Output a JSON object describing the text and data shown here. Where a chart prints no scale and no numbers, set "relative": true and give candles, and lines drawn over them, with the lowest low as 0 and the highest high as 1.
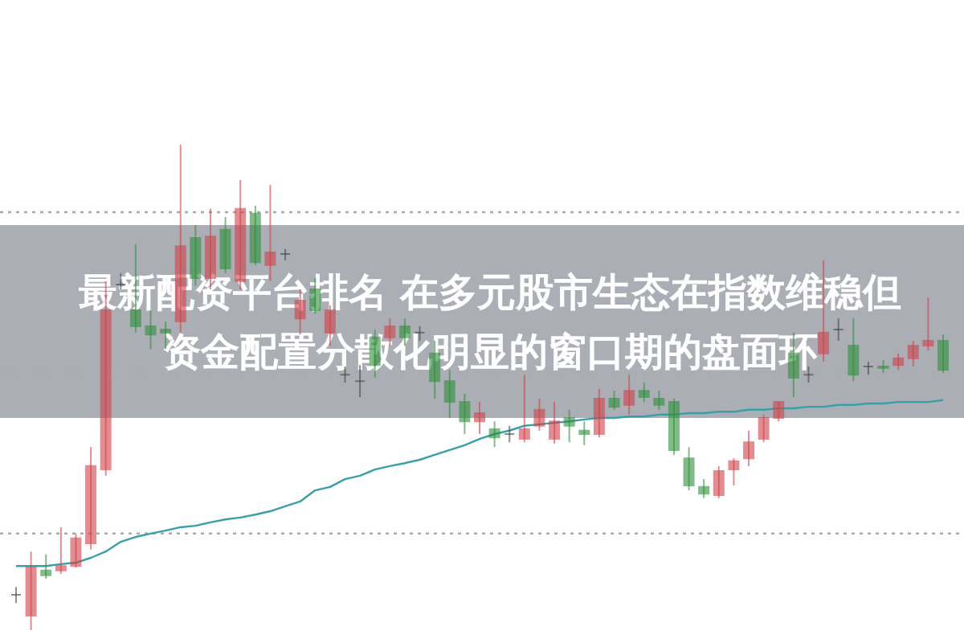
{
  "chart_data": {
    "type": "candlestick",
    "relative": true,
    "title": "最新配资平台排名 在多元股市生态在指数维稳但资金配置分散化明显的窗口期的盘面环",
    "categories": [
      null,
      null,
      null,
      null,
      null,
      null,
      null,
      null,
      null,
      null,
      null,
      null,
      null,
      null,
      null,
      null,
      null,
      null,
      null,
      null,
      null,
      null,
      null,
      null,
      null,
      null,
      null,
      null,
      null,
      null,
      null,
      null,
      null,
      null,
      null,
      null,
      null,
      null,
      null,
      null,
      null,
      null,
      null,
      null,
      null,
      null,
      null,
      null,
      null,
      null,
      null,
      null,
      null,
      null,
      null,
      null,
      null,
      null,
      null,
      null,
      null,
      null,
      null
    ],
    "ohlc": [
      [
        0.073,
        0.089,
        0.056,
        0.073
      ],
      [
        0.03,
        0.162,
        0,
        0.129
      ],
      [
        0.123,
        0.156,
        0.106,
        0.113
      ],
      [
        0.123,
        0.212,
        0.116,
        0.132
      ],
      [
        0.132,
        0.199,
        0.129,
        0.189
      ],
      [
        0.179,
        0.377,
        0.166,
        0.338
      ],
      [
        0.331,
        0.719,
        0.318,
        0.659
      ],
      [
        0.712,
        0.735,
        0.702,
        0.712
      ],
      [
        0.659,
        0.795,
        0.613,
        0.626
      ],
      [
        0.626,
        0.659,
        0.579,
        0.609
      ],
      [
        0.619,
        0.636,
        0.579,
        0.613
      ],
      [
        0.636,
        1,
        0.613,
        0.791
      ],
      [
        0.808,
        0.834,
        0.709,
        0.725
      ],
      [
        0.725,
        0.868,
        0.702,
        0.811
      ],
      [
        0.825,
        0.851,
        0.735,
        0.745
      ],
      [
        0.719,
        0.927,
        0.702,
        0.868
      ],
      [
        0.858,
        0.874,
        0.752,
        0.758
      ],
      [
        0.752,
        0.917,
        0.719,
        0.778
      ],
      [
        0.775,
        0.785,
        0.762,
        0.775
      ],
      [
        0.642,
        0.702,
        0.609,
        0.679
      ],
      [
        0.702,
        0.725,
        0.652,
        0.659
      ],
      [
        0.613,
        0.669,
        0.586,
        0.659
      ],
      [
        0.526,
        0.543,
        0.51,
        0.526
      ],
      [
        0.513,
        0.546,
        0.48,
        0.513
      ],
      [
        0.603,
        0.619,
        0.52,
        0.546
      ],
      [
        0.603,
        0.642,
        0.586,
        0.626
      ],
      [
        0.626,
        0.642,
        0.586,
        0.603
      ],
      [
        0.613,
        0.626,
        0.596,
        0.613
      ],
      [
        0.57,
        0.596,
        0.477,
        0.513
      ],
      [
        0.513,
        0.536,
        0.437,
        0.47
      ],
      [
        0.47,
        0.487,
        0.404,
        0.43
      ],
      [
        0.43,
        0.47,
        0.404,
        0.447
      ],
      [
        0.414,
        0.43,
        0.377,
        0.397
      ],
      [
        0.404,
        0.421,
        0.387,
        0.404
      ],
      [
        0.394,
        0.526,
        0.387,
        0.414
      ],
      [
        0.421,
        0.477,
        0.411,
        0.454
      ],
      [
        0.394,
        0.47,
        0.384,
        0.43
      ],
      [
        0.437,
        0.454,
        0.387,
        0.421
      ],
      [
        0.411,
        0.43,
        0.381,
        0.404
      ],
      [
        0.404,
        0.497,
        0.397,
        0.477
      ],
      [
        0.477,
        0.493,
        0.454,
        0.46
      ],
      [
        0.464,
        0.526,
        0.444,
        0.493
      ],
      [
        0.493,
        0.51,
        0.47,
        0.48
      ],
      [
        0.477,
        0.493,
        0.454,
        0.464
      ],
      [
        0.47,
        0.477,
        0.361,
        0.371
      ],
      [
        0.354,
        0.377,
        0.288,
        0.298
      ],
      [
        0.295,
        0.311,
        0.272,
        0.281
      ],
      [
        0.278,
        0.338,
        0.272,
        0.328
      ],
      [
        0.331,
        0.354,
        0.298,
        0.348
      ],
      [
        0.354,
        0.411,
        0.338,
        0.387
      ],
      [
        0.394,
        0.444,
        0.387,
        0.437
      ],
      [
        0.437,
        0.47,
        0.43,
        0.47
      ],
      [
        0.57,
        0.613,
        0.48,
        0.52
      ],
      [
        0.526,
        0.543,
        0.51,
        0.526
      ],
      [
        0.57,
        0.762,
        0.553,
        0.613
      ],
      [
        0.619,
        0.642,
        0.596,
        0.619
      ],
      [
        0.586,
        0.642,
        0.513,
        0.526
      ],
      [
        0.543,
        0.553,
        0.526,
        0.543
      ],
      [
        0.543,
        0.556,
        0.53,
        0.54
      ],
      [
        0.546,
        0.57,
        0.536,
        0.56
      ],
      [
        0.56,
        0.596,
        0.543,
        0.586
      ],
      [
        0.586,
        0.685,
        0.576,
        0.596
      ],
      [
        0.596,
        0.609,
        0.53,
        0.536
      ]
    ],
    "colors": [
      "#444444",
      "#d0424a",
      "#2f8f3a",
      "#d0424a",
      "#d0424a",
      "#d0424a",
      "#d0424a",
      "#444444",
      "#2f8f3a",
      "#2f8f3a",
      "#2f8f3a",
      "#d0424a",
      "#2f8f3a",
      "#d0424a",
      "#2f8f3a",
      "#d0424a",
      "#2f8f3a",
      "#d0424a",
      "#444444",
      "#d0424a",
      "#2f8f3a",
      "#d0424a",
      "#444444",
      "#444444",
      "#2f8f3a",
      "#d0424a",
      "#2f8f3a",
      "#444444",
      "#2f8f3a",
      "#2f8f3a",
      "#2f8f3a",
      "#d0424a",
      "#2f8f3a",
      "#444444",
      "#d0424a",
      "#d0424a",
      "#d0424a",
      "#2f8f3a",
      "#2f8f3a",
      "#d0424a",
      "#2f8f3a",
      "#d0424a",
      "#2f8f3a",
      "#2f8f3a",
      "#2f8f3a",
      "#2f8f3a",
      "#2f8f3a",
      "#d0424a",
      "#d0424a",
      "#d0424a",
      "#d0424a",
      "#d0424a",
      "#2f8f3a",
      "#444444",
      "#d0424a",
      "#444444",
      "#2f8f3a",
      "#444444",
      "#2f8f3a",
      "#d0424a",
      "#d0424a",
      "#d0424a",
      "#2f8f3a"
    ],
    "series": [
      {
        "type": "line",
        "color": "#3a9fa6",
        "values": [
          0.132,
          0.132,
          0.132,
          0.136,
          0.139,
          0.149,
          0.162,
          0.182,
          0.192,
          0.199,
          0.205,
          0.212,
          0.215,
          0.222,
          0.228,
          0.232,
          0.238,
          0.245,
          0.255,
          0.265,
          0.288,
          0.295,
          0.311,
          0.318,
          0.331,
          0.338,
          0.344,
          0.351,
          0.361,
          0.371,
          0.381,
          0.394,
          0.404,
          0.411,
          0.421,
          0.424,
          0.427,
          0.43,
          0.434,
          0.437,
          0.437,
          0.44,
          0.44,
          0.444,
          0.444,
          0.447,
          0.447,
          0.45,
          0.45,
          0.454,
          0.454,
          0.457,
          0.457,
          0.46,
          0.46,
          0.464,
          0.464,
          0.467,
          0.467,
          0.47,
          0.47,
          0.47,
          0.474
        ]
      }
    ],
    "ref_lines": [
      {
        "axis": "y",
        "value": 0.861,
        "color": "#aaaaaa",
        "line_style": "dotted"
      },
      {
        "axis": "y",
        "value": 0.53,
        "color": "#aaaaaa",
        "line_style": "dotted"
      },
      {
        "axis": "y",
        "value": 0.199,
        "color": "#aaaaaa",
        "line_style": "dotted"
      }
    ]
  }
}
